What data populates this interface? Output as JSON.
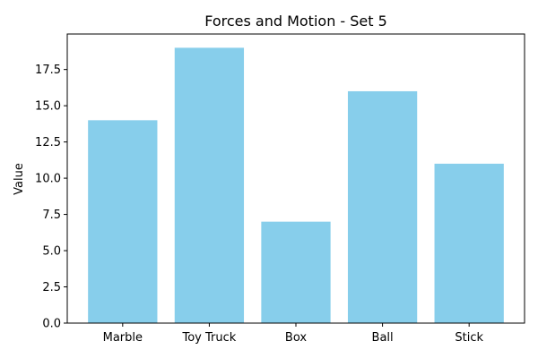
{
  "chart_data": {
    "type": "bar",
    "title": "Forces and Motion - Set 5",
    "xlabel": "",
    "ylabel": "Value",
    "categories": [
      "Marble",
      "Toy Truck",
      "Box",
      "Ball",
      "Stick"
    ],
    "values": [
      14,
      19,
      7,
      16,
      11
    ],
    "ylim": [
      0,
      19.95
    ],
    "yticks": [
      0.0,
      2.5,
      5.0,
      7.5,
      10.0,
      12.5,
      15.0,
      17.5
    ],
    "ytick_labels": [
      "0.0",
      "2.5",
      "5.0",
      "7.5",
      "10.0",
      "12.5",
      "15.0",
      "17.5"
    ],
    "bar_color": "#87ceeb",
    "grid": false,
    "legend": "none"
  }
}
